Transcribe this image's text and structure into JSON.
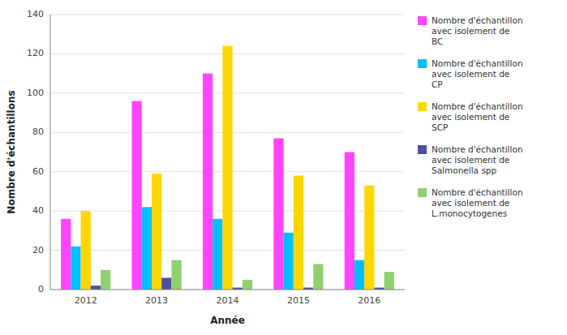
{
  "chart_data": {
    "type": "bar",
    "xlabel": "Année",
    "ylabel": "Nombre d'échantillons",
    "categories": [
      "2012",
      "2013",
      "2014",
      "2015",
      "2016"
    ],
    "series": [
      {
        "name": "Nombre d'échantillon\navec isolement de\nBC",
        "color": "#FF44FF",
        "values": [
          36,
          96,
          110,
          77,
          70
        ]
      },
      {
        "name": "Nombre d'échantillon\navec isolement de\nCP",
        "color": "#00BFFF",
        "values": [
          22,
          42,
          36,
          29,
          15
        ]
      },
      {
        "name": "Nombre d'échantillon\navec isolement de\nSCP",
        "color": "#FFD700",
        "values": [
          40,
          59,
          124,
          58,
          53
        ]
      },
      {
        "name": "Nombre d'échantillon\navec isolement de\nSalmonella spp",
        "color": "#5050A0",
        "values": [
          2,
          6,
          1,
          1,
          1
        ]
      },
      {
        "name": "Nombre d'échantillon\navec isolement de\nL.monocytogenes",
        "color": "#90D070",
        "values": [
          10,
          15,
          5,
          13,
          9
        ]
      }
    ],
    "ylim": [
      0,
      140
    ],
    "yticks": [
      0,
      20,
      40,
      60,
      80,
      100,
      120,
      140
    ],
    "grid": true,
    "legend": "right"
  }
}
